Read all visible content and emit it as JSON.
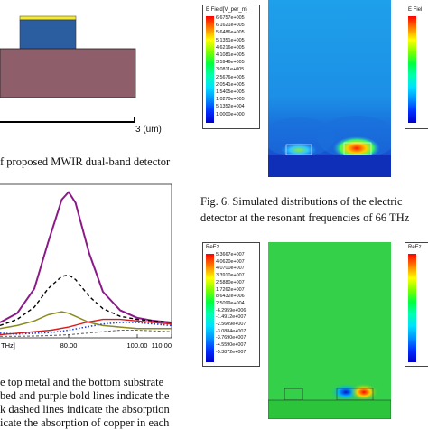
{
  "top_left": {
    "scale_label": "3 (um)",
    "caption": "f proposed MWIR dual-band detector"
  },
  "top_right": {
    "legend_title": "E Field[V_per_m]",
    "legend_values": [
      "6.6757e+005",
      "6.1621e+005",
      "5.6486e+005",
      "5.1351e+005",
      "4.6216e+005",
      "4.1081e+005",
      "3.5946e+005",
      "3.0811e+005",
      "2.5676e+005",
      "2.0541e+005",
      "1.5405e+005",
      "1.0270e+005",
      "5.1352e+004",
      "1.0000e+000"
    ],
    "legend2_title": "E Fiel",
    "caption_line1": "Fig. 6.   Simulated distributions of the electric",
    "caption_line2": "detector at the resonant frequencies of 66 THz"
  },
  "bottom_left": {
    "caption_lines": [
      "e top metal and the bottom substrate",
      "bed and purple bold lines indicate the",
      "k dashed lines indicate the absorption",
      "icate the absorption of copper in each"
    ]
  },
  "bottom_right": {
    "legend_title": "ReEz",
    "legend_values": [
      "5.3667e+007",
      "4.0620e+007",
      "4.0700e+007",
      "3.3910e+007",
      "2.5880e+007",
      "1.7262e+007",
      "8.6432e+006",
      "2.5099e+004",
      "-6.2959e+006",
      "-1.4912e+007",
      "-2.5609e+007",
      "-3.0884e+007",
      "-3.7690e+007",
      "-4.5590e+007",
      "-5.3872e+007"
    ],
    "legend2_title": "ReEz"
  },
  "chart_data": {
    "type": "line",
    "x_tick_labels": [
      "80.00",
      "100.00",
      "110.00"
    ],
    "x_partial_label": "THz]",
    "xlim": [
      60,
      110
    ],
    "ylim": [
      0,
      1
    ],
    "series": [
      {
        "style": "purple-solid",
        "color": "#8b1a89",
        "x": [
          60,
          65,
          70,
          74,
          78,
          80,
          82,
          86,
          90,
          95,
          100,
          105,
          110
        ],
        "y": [
          0.1,
          0.16,
          0.32,
          0.62,
          0.9,
          0.95,
          0.88,
          0.55,
          0.3,
          0.18,
          0.13,
          0.11,
          0.1
        ]
      },
      {
        "style": "black-dashed",
        "color": "#000000",
        "x": [
          60,
          65,
          70,
          74,
          78,
          80,
          82,
          86,
          90,
          95,
          100,
          105,
          110
        ],
        "y": [
          0.08,
          0.12,
          0.2,
          0.32,
          0.4,
          0.41,
          0.38,
          0.27,
          0.19,
          0.14,
          0.12,
          0.11,
          0.1
        ]
      },
      {
        "style": "olive-solid",
        "color": "#8a8a1e",
        "x": [
          60,
          65,
          70,
          74,
          78,
          80,
          82,
          86,
          90,
          95,
          100,
          105,
          110
        ],
        "y": [
          0.06,
          0.08,
          0.11,
          0.15,
          0.17,
          0.16,
          0.14,
          0.1,
          0.08,
          0.07,
          0.06,
          0.06,
          0.06
        ]
      },
      {
        "style": "red-solid",
        "color": "#d61c1c",
        "x": [
          60,
          65,
          70,
          75,
          80,
          85,
          90,
          95,
          100,
          105,
          110
        ],
        "y": [
          0.02,
          0.03,
          0.04,
          0.05,
          0.07,
          0.1,
          0.12,
          0.12,
          0.11,
          0.1,
          0.09
        ]
      },
      {
        "style": "blue-dotted",
        "color": "#1f3fd0",
        "x": [
          60,
          65,
          70,
          75,
          80,
          85,
          90,
          95,
          100,
          105,
          110
        ],
        "y": [
          0.03,
          0.025,
          0.03,
          0.035,
          0.05,
          0.07,
          0.09,
          0.1,
          0.1,
          0.09,
          0.08
        ]
      },
      {
        "style": "gray-dashed",
        "color": "#666666",
        "x": [
          60,
          65,
          70,
          75,
          80,
          85,
          90,
          95,
          100,
          105,
          110
        ],
        "y": [
          0.01,
          0.01,
          0.012,
          0.015,
          0.02,
          0.03,
          0.04,
          0.05,
          0.05,
          0.045,
          0.04
        ]
      }
    ]
  }
}
